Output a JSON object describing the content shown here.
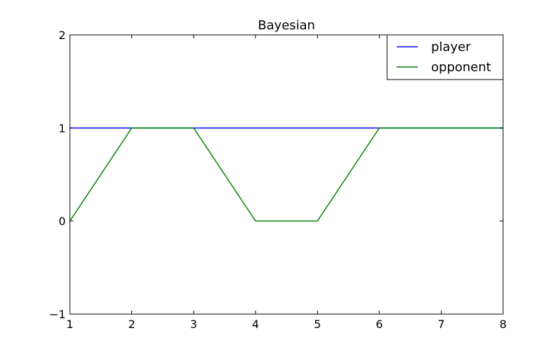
{
  "chart_data": {
    "type": "line",
    "title": "Bayesian",
    "xlabel": "",
    "ylabel": "",
    "xlim": [
      1,
      8
    ],
    "ylim": [
      -1,
      2
    ],
    "xticks": [
      1,
      2,
      3,
      4,
      5,
      6,
      7,
      8
    ],
    "yticks": [
      -1,
      0,
      1,
      2
    ],
    "xtick_labels": [
      "1",
      "2",
      "3",
      "4",
      "5",
      "6",
      "7",
      "8"
    ],
    "ytick_labels": [
      "−1",
      "0",
      "1",
      "2"
    ],
    "grid": false,
    "legend_position": "top-right",
    "series": [
      {
        "name": "player",
        "color": "#0000ff",
        "x": [
          1,
          2,
          3,
          4,
          5,
          6,
          7,
          8
        ],
        "y": [
          1,
          1,
          1,
          1,
          1,
          1,
          1,
          1
        ]
      },
      {
        "name": "opponent",
        "color": "#008000",
        "x": [
          1,
          2,
          3,
          4,
          5,
          6,
          7,
          8
        ],
        "y": [
          0,
          1,
          1,
          0,
          0,
          1,
          1,
          1
        ]
      }
    ]
  }
}
